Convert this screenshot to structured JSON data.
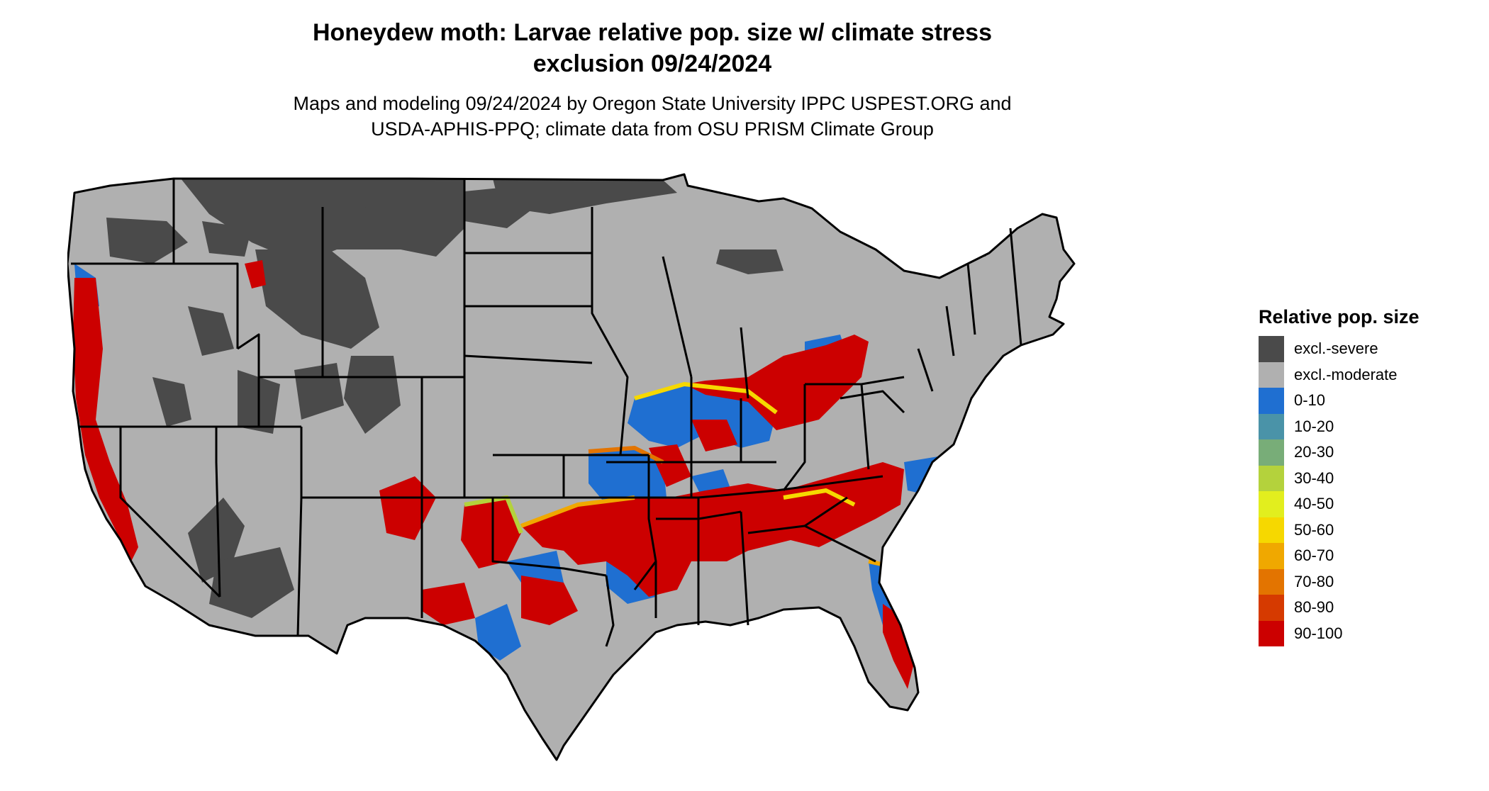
{
  "title": {
    "line1": "Honeydew moth: Larvae relative pop. size w/ climate stress",
    "line2": "exclusion 09/24/2024"
  },
  "subtitle": {
    "line1": "Maps and modeling 09/24/2024 by Oregon State University IPPC USPEST.ORG and",
    "line2": "USDA-APHIS-PPQ; climate data from OSU PRISM Climate Group"
  },
  "legend": {
    "title": "Relative pop. size",
    "items": [
      {
        "label": "excl.-severe",
        "color": "#4a4a4a"
      },
      {
        "label": "excl.-moderate",
        "color": "#b0b0b0"
      },
      {
        "label": "0-10",
        "color": "#1f6fd1"
      },
      {
        "label": "10-20",
        "color": "#4a93a8"
      },
      {
        "label": "20-30",
        "color": "#78ad78"
      },
      {
        "label": "30-40",
        "color": "#b4d23c"
      },
      {
        "label": "40-50",
        "color": "#e2ee1e"
      },
      {
        "label": "50-60",
        "color": "#f6d800"
      },
      {
        "label": "60-70",
        "color": "#f0a800"
      },
      {
        "label": "70-80",
        "color": "#e37400"
      },
      {
        "label": "80-90",
        "color": "#d63a00"
      },
      {
        "label": "90-100",
        "color": "#cc0000"
      }
    ]
  }
}
